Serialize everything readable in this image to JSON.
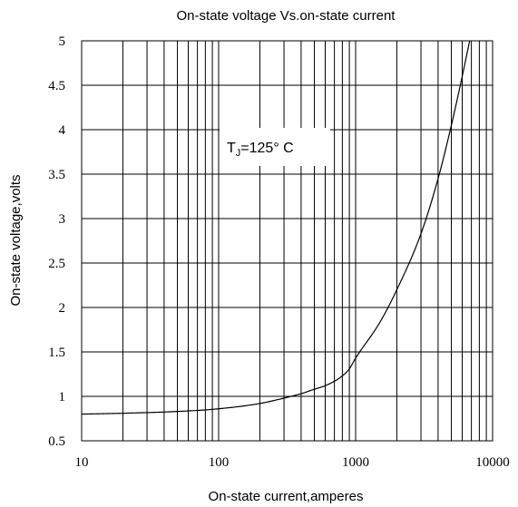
{
  "chart_data": {
    "type": "line",
    "title": "On-state voltage  Vs.on-state current",
    "xlabel": "On-state current,amperes",
    "ylabel": "On-state voltage,volts",
    "x_scale": "log",
    "xlim": [
      10,
      10000
    ],
    "ylim": [
      0.5,
      5
    ],
    "x_ticks": [
      10,
      100,
      1000,
      10000
    ],
    "x_tick_labels": [
      "10",
      "100",
      "1000",
      "10000"
    ],
    "y_ticks": [
      0.5,
      1,
      1.5,
      2,
      2.5,
      3,
      3.5,
      4,
      4.5,
      5
    ],
    "y_tick_labels": [
      "0.5",
      "1",
      "1.5",
      "2",
      "2.5",
      "3",
      "3.5",
      "4",
      "4.5",
      "5"
    ],
    "grid": true,
    "annotation": {
      "main": "T",
      "sub": "J",
      "rest": "=125° C"
    },
    "series": [
      {
        "x": [
          10,
          20,
          50,
          100,
          200,
          300,
          400,
          500,
          600,
          700,
          800,
          900,
          1000,
          1500,
          2000,
          3000,
          4000,
          5000,
          6000,
          6800
        ],
        "y": [
          0.8,
          0.81,
          0.83,
          0.86,
          0.92,
          0.98,
          1.03,
          1.08,
          1.12,
          1.17,
          1.23,
          1.31,
          1.43,
          1.83,
          2.2,
          2.83,
          3.45,
          4.05,
          4.6,
          5.0
        ]
      }
    ]
  }
}
